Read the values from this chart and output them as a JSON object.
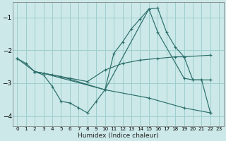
{
  "background_color": "#cce8e8",
  "grid_color": "#9ecece",
  "line_color": "#2a6e6a",
  "marker": "+",
  "xlabel": "Humidex (Indice chaleur)",
  "xlim": [
    -0.5,
    23.5
  ],
  "ylim": [
    -4.3,
    -0.55
  ],
  "yticks": [
    -4,
    -3,
    -2,
    -1
  ],
  "xticks": [
    0,
    1,
    2,
    3,
    4,
    5,
    6,
    7,
    8,
    9,
    10,
    11,
    12,
    13,
    14,
    15,
    16,
    17,
    18,
    19,
    20,
    21,
    22,
    23
  ],
  "series": [
    {
      "x": [
        0,
        1,
        2,
        3,
        4,
        5,
        6,
        7,
        8,
        9,
        10,
        11,
        12,
        13,
        14,
        15,
        16,
        17,
        18,
        19,
        20,
        21,
        22
      ],
      "y": [
        -2.25,
        -2.4,
        -2.65,
        -2.75,
        -3.1,
        -3.55,
        -3.6,
        -3.75,
        -3.9,
        -3.55,
        -3.2,
        -2.1,
        -1.75,
        -1.35,
        -1.05,
        -0.75,
        -0.72,
        -1.45,
        -1.9,
        -2.2,
        -2.9,
        -2.9,
        -2.9
      ]
    },
    {
      "x": [
        0,
        2,
        4,
        6,
        8,
        10,
        12,
        14,
        16,
        18,
        19,
        22
      ],
      "y": [
        -2.25,
        -2.65,
        -2.75,
        -2.85,
        -2.95,
        -2.6,
        -2.4,
        -2.3,
        -2.25,
        -2.2,
        -2.2,
        -2.15
      ]
    },
    {
      "x": [
        2,
        3,
        10,
        15,
        16,
        19,
        20,
        21,
        22
      ],
      "y": [
        -2.65,
        -2.7,
        -3.2,
        -0.75,
        -1.45,
        -2.85,
        -2.9,
        -2.9,
        -3.9
      ]
    },
    {
      "x": [
        2,
        5,
        10,
        15,
        19,
        22
      ],
      "y": [
        -2.65,
        -2.8,
        -3.2,
        -3.45,
        -3.75,
        -3.9
      ]
    }
  ]
}
